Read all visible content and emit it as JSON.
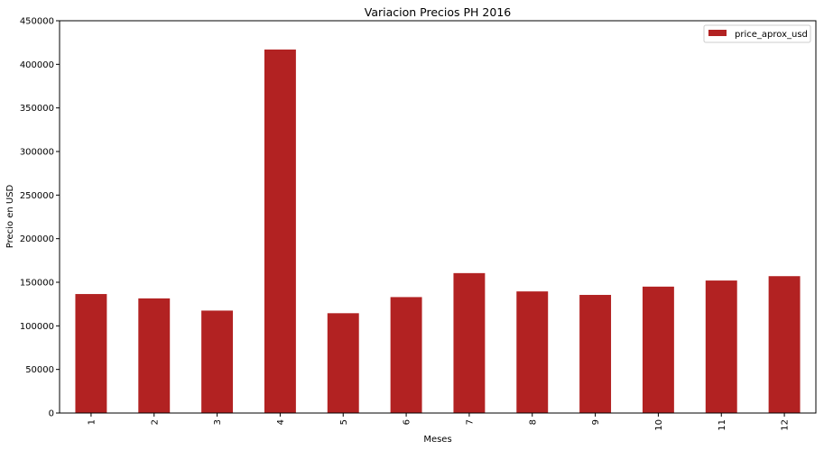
{
  "chart_data": {
    "type": "bar",
    "title": "Variacion Precios PH 2016",
    "xlabel": "Meses",
    "ylabel": "Precio en USD",
    "categories": [
      "1",
      "2",
      "3",
      "4",
      "5",
      "6",
      "7",
      "8",
      "9",
      "10",
      "11",
      "12"
    ],
    "series": [
      {
        "name": "price_aprox_usd",
        "color": "#b22222",
        "values": [
          136500,
          131500,
          117500,
          417000,
          114500,
          133000,
          160500,
          139500,
          135500,
          145000,
          152000,
          157000
        ]
      }
    ],
    "ylim": [
      0,
      450000
    ],
    "yticks": [
      0,
      50000,
      100000,
      150000,
      200000,
      250000,
      300000,
      350000,
      400000,
      450000
    ],
    "ytick_labels": [
      "0",
      "50000",
      "100000",
      "150000",
      "200000",
      "250000",
      "300000",
      "350000",
      "400000",
      "450000"
    ],
    "grid": false,
    "legend_position": "top-right",
    "x_tick_rotation": "vertical"
  }
}
